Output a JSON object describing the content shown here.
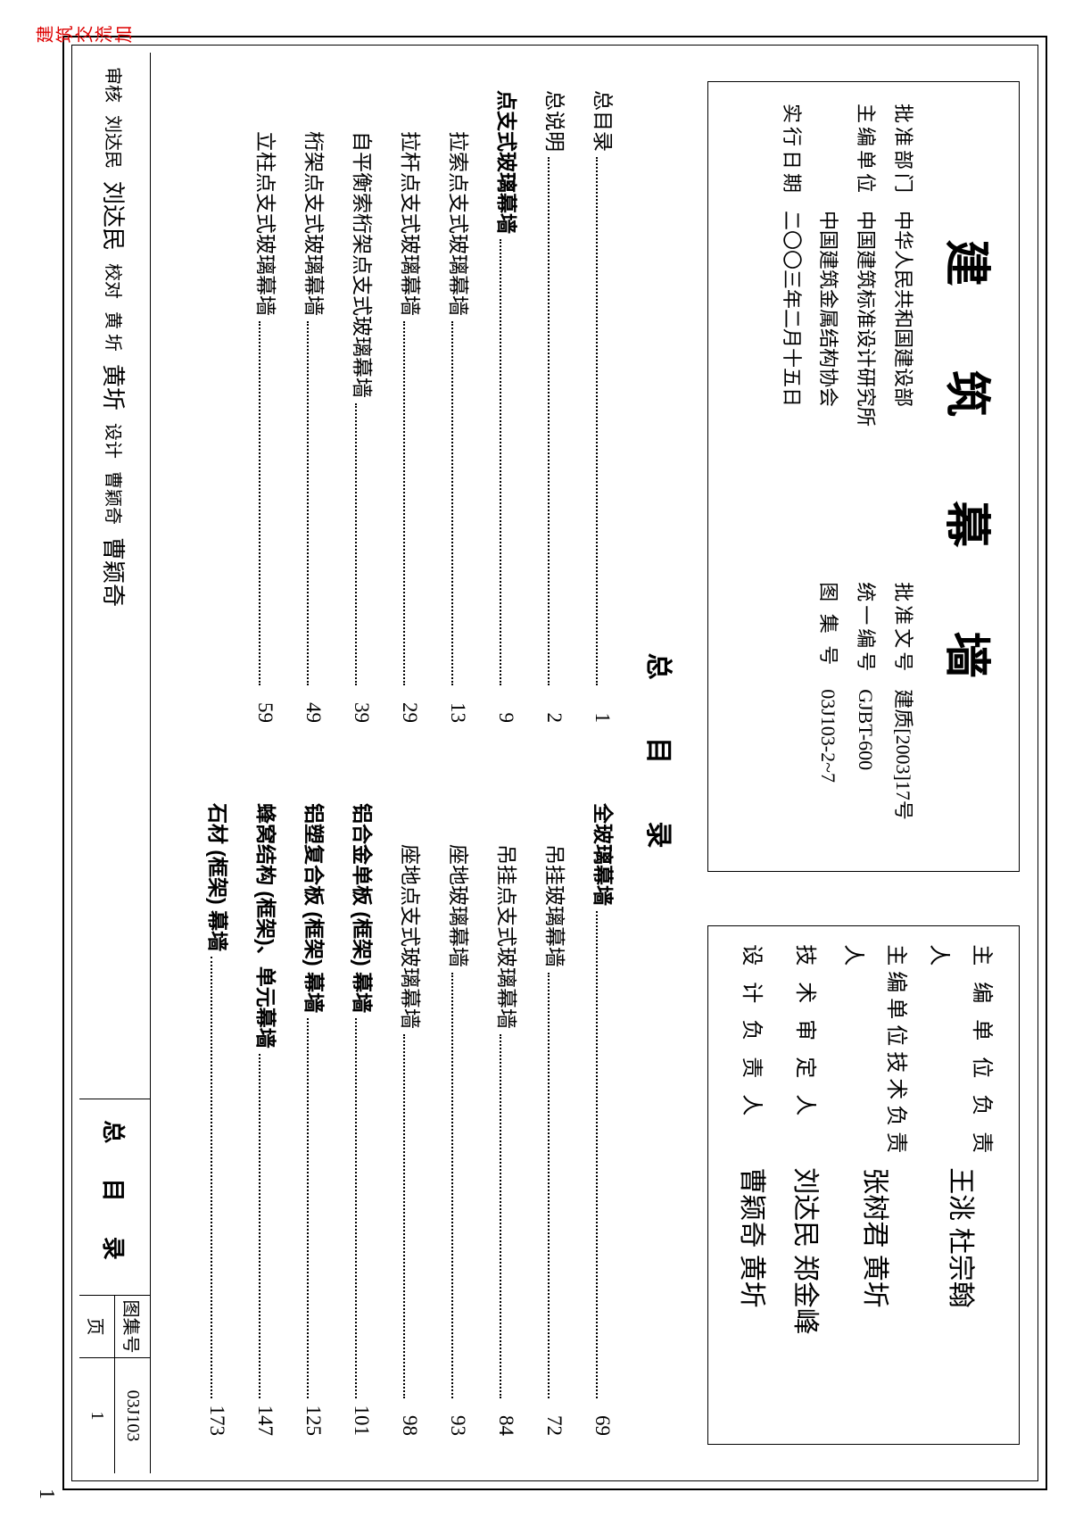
{
  "doc_title": "建 筑 幕 墙",
  "header_left": {
    "rows": [
      {
        "l1": "批准部门",
        "v1": "中华人民共和国建设部",
        "l2": "批准文号",
        "v2": "建质[2003]17号"
      },
      {
        "l1": "主编单位",
        "v1": "中国建筑标准设计研究所",
        "l2": "统一编号",
        "v2": "GJBT-600"
      },
      {
        "l1": "",
        "v1": "中国建筑金属结构协会",
        "l2": "图 集 号",
        "v2": "03J103-2~7"
      },
      {
        "l1": "实行日期",
        "v1": "二〇〇三年二月十五日",
        "l2": "",
        "v2": ""
      }
    ]
  },
  "header_right": {
    "rows": [
      {
        "label": "主 编 单 位 负 责 人",
        "sign": "王洮 杜宗翰"
      },
      {
        "label": "主编单位技术负责人",
        "sign": "张树君 黄圻"
      },
      {
        "label": "技 术 审 定 人",
        "sign": "刘达民 郑金峰"
      },
      {
        "label": "设 计 负 责 人",
        "sign": "曹颖奇 黄圻"
      }
    ]
  },
  "toc_title": "总 目 录",
  "toc_left": [
    {
      "label": "总目录",
      "page": "1",
      "type": "plain"
    },
    {
      "label": "总说明",
      "page": "2",
      "type": "plain"
    },
    {
      "label": "点支式玻璃幕墙",
      "page": "9",
      "type": "section"
    },
    {
      "label": "拉索点支式玻璃幕墙",
      "page": "13",
      "type": "sub"
    },
    {
      "label": "拉杆点支式玻璃幕墙",
      "page": "29",
      "type": "sub"
    },
    {
      "label": "自平衡索桁架点支式玻璃幕墙",
      "page": "39",
      "type": "sub"
    },
    {
      "label": "桁架点支式玻璃幕墙",
      "page": "49",
      "type": "sub"
    },
    {
      "label": "立柱点支式玻璃幕墙",
      "page": "59",
      "type": "sub"
    }
  ],
  "toc_right": [
    {
      "label": "全玻璃幕墙",
      "page": "69",
      "type": "section"
    },
    {
      "label": "吊挂玻璃幕墙",
      "page": "72",
      "type": "sub"
    },
    {
      "label": "吊挂点支式玻璃幕墙",
      "page": "84",
      "type": "sub"
    },
    {
      "label": "座地玻璃幕墙",
      "page": "93",
      "type": "sub"
    },
    {
      "label": "座地点支式玻璃幕墙",
      "page": "98",
      "type": "sub"
    },
    {
      "label": "铝合金单板 (框架) 幕墙",
      "page": "101",
      "type": "section"
    },
    {
      "label": "铝塑复合板 (框架) 幕墙",
      "page": "125",
      "type": "section"
    },
    {
      "label": "蜂窝结构 (框架)、单元幕墙",
      "page": "147",
      "type": "section"
    },
    {
      "label": "石材 (框架) 幕墙",
      "page": "173",
      "type": "section"
    }
  ],
  "footer": {
    "review_label": "审核",
    "review_name": "刘达民",
    "review_sign": "刘达民",
    "proof_label": "校对",
    "proof_name": "黄 圻",
    "proof_sign": "黄圻",
    "design_label": "设计",
    "design_name": "曹颖奇",
    "design_sign": "曹颖奇",
    "center": "总 目 录",
    "album_label": "图集号",
    "album_val": "03J103",
    "page_label": "页",
    "page_val": "1"
  },
  "side_note": "建筑交流加",
  "outer_page": "1"
}
